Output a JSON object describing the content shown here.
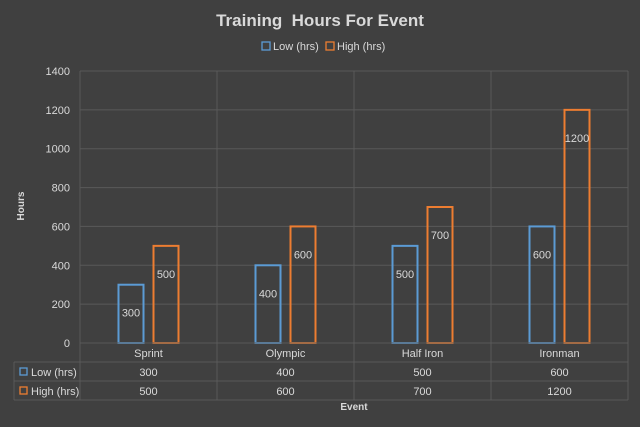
{
  "chart_data": {
    "type": "bar",
    "title": "Training  Hours For Event",
    "xlabel": "Event",
    "ylabel": "Hours",
    "categories": [
      "Sprint",
      "Olympic",
      "Half Iron",
      "Ironman"
    ],
    "series": [
      {
        "name": "Low (hrs)",
        "values": [
          300,
          400,
          500,
          600
        ],
        "color": "#5b9bd5"
      },
      {
        "name": "High (hrs)",
        "values": [
          500,
          600,
          700,
          1200
        ],
        "color": "#ed7d31"
      }
    ],
    "ylim": [
      0,
      1400
    ],
    "yticks": [
      0,
      200,
      400,
      600,
      800,
      1000,
      1200,
      1400
    ],
    "grid": true,
    "legend": "top",
    "data_table": true,
    "colors": {
      "background": "#404040",
      "grid": "#595959",
      "text": "#d9d9d9"
    }
  }
}
